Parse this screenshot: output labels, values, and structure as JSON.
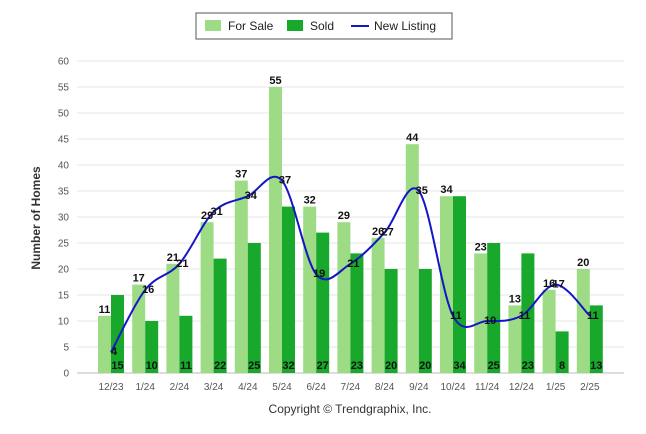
{
  "chart_data": {
    "type": "bar",
    "title": "",
    "xlabel": "",
    "ylabel": "Number of Homes",
    "ylim": [
      0,
      60
    ],
    "yticks": [
      0,
      5,
      10,
      15,
      20,
      25,
      30,
      35,
      40,
      45,
      50,
      55,
      60
    ],
    "grid": true,
    "legend_position": "top-center",
    "categories": [
      "12/23",
      "1/24",
      "2/24",
      "3/24",
      "4/24",
      "5/24",
      "6/24",
      "7/24",
      "8/24",
      "9/24",
      "10/24",
      "11/24",
      "12/24",
      "1/25",
      "2/25"
    ],
    "series": [
      {
        "name": "For Sale",
        "kind": "bar",
        "color": "#9ddc84",
        "values": [
          11,
          17,
          21,
          29,
          37,
          55,
          32,
          29,
          26,
          44,
          34,
          23,
          13,
          16,
          20
        ]
      },
      {
        "name": "Sold",
        "kind": "bar",
        "color": "#17a82c",
        "values": [
          15,
          10,
          11,
          22,
          25,
          32,
          27,
          23,
          20,
          20,
          34,
          25,
          23,
          8,
          13
        ]
      },
      {
        "name": "New Listing",
        "kind": "line",
        "color": "#1515c8",
        "values": [
          4,
          16,
          21,
          31,
          34,
          37,
          19,
          21,
          27,
          35,
          11,
          10,
          11,
          17,
          11
        ]
      }
    ]
  },
  "copyright": "Copyright © Trendgraphix, Inc."
}
